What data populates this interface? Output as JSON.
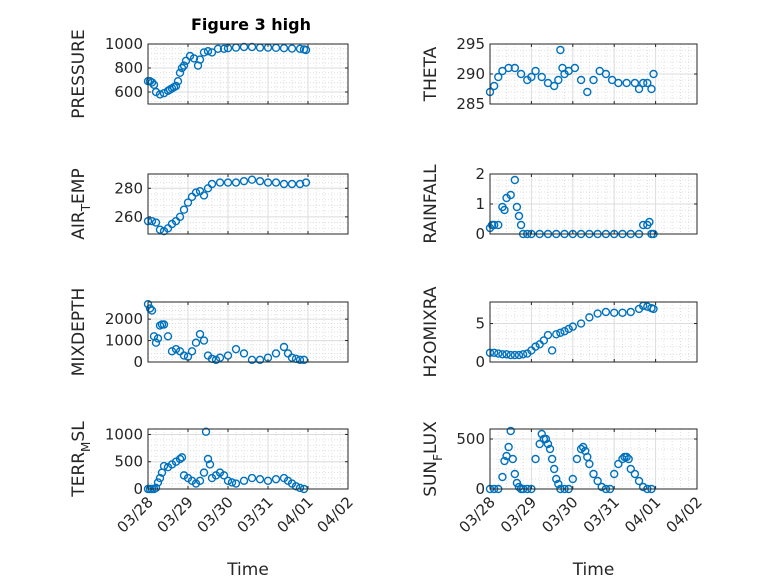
{
  "figure": {
    "title": "Figure 3 high",
    "marker_color": "#0072BD",
    "xlabel": "Time"
  },
  "chart_data": [
    {
      "type": "scatter",
      "title": "Figure 3 high",
      "xlabel": "",
      "ylabel": "PRESSURE",
      "xlim": [
        0,
        5
      ],
      "ylim": [
        500,
        1000
      ],
      "yticks": [
        600,
        800,
        1000
      ],
      "xticks": [
        0,
        1,
        2,
        3,
        4,
        5
      ],
      "xticklabels": [
        "03/28",
        "03/29",
        "03/30",
        "03/31",
        "04/01",
        "04/02"
      ],
      "x": [
        0.0,
        0.05,
        0.1,
        0.15,
        0.2,
        0.3,
        0.4,
        0.5,
        0.55,
        0.6,
        0.65,
        0.7,
        0.75,
        0.8,
        0.85,
        0.9,
        0.95,
        1.05,
        1.15,
        1.25,
        1.3,
        1.4,
        1.5,
        1.6,
        1.75,
        1.9,
        2.0,
        2.2,
        2.4,
        2.6,
        2.8,
        3.0,
        3.2,
        3.4,
        3.6,
        3.8,
        3.9,
        3.95
      ],
      "y": [
        690,
        690,
        680,
        660,
        600,
        580,
        590,
        610,
        620,
        630,
        640,
        650,
        690,
        760,
        800,
        820,
        860,
        900,
        880,
        820,
        870,
        930,
        940,
        930,
        960,
        960,
        965,
        970,
        975,
        975,
        970,
        970,
        968,
        965,
        962,
        960,
        955,
        950
      ]
    },
    {
      "type": "scatter",
      "xlabel": "",
      "ylabel": "THETA",
      "xlim": [
        0,
        5
      ],
      "ylim": [
        285,
        295
      ],
      "yticks": [
        285,
        290,
        295
      ],
      "xticks": [
        0,
        1,
        2,
        3,
        4,
        5
      ],
      "xticklabels": [
        "03/28",
        "03/29",
        "03/30",
        "03/31",
        "04/01",
        "04/02"
      ],
      "x": [
        0.0,
        0.1,
        0.2,
        0.3,
        0.45,
        0.6,
        0.75,
        0.9,
        1.0,
        1.1,
        1.25,
        1.4,
        1.55,
        1.65,
        1.7,
        1.75,
        1.8,
        1.9,
        2.05,
        2.2,
        2.35,
        2.5,
        2.65,
        2.8,
        2.95,
        3.1,
        3.3,
        3.5,
        3.6,
        3.7,
        3.8,
        3.9,
        3.95
      ],
      "y": [
        287,
        288,
        289.5,
        290.5,
        291,
        291,
        290,
        289,
        289.5,
        290.5,
        289.5,
        288.5,
        288,
        289,
        294,
        291,
        290,
        290.5,
        291,
        289,
        287,
        289,
        290.5,
        290,
        289,
        288.5,
        288.5,
        288.5,
        287.5,
        288.5,
        288.5,
        287.5,
        290
      ]
    },
    {
      "type": "scatter",
      "xlabel": "",
      "ylabel": "AIRTEMP",
      "ylabel_main": "AIR",
      "ylabel_sub": "T",
      "ylabel_rest": "EMP",
      "xlim": [
        0,
        5
      ],
      "ylim": [
        248,
        290
      ],
      "yticks": [
        260,
        280
      ],
      "xticks": [
        0,
        1,
        2,
        3,
        4,
        5
      ],
      "xticklabels": [
        "03/28",
        "03/29",
        "03/30",
        "03/31",
        "04/01",
        "04/02"
      ],
      "x": [
        0.0,
        0.1,
        0.2,
        0.3,
        0.4,
        0.5,
        0.6,
        0.7,
        0.8,
        0.9,
        1.0,
        1.1,
        1.2,
        1.3,
        1.4,
        1.5,
        1.6,
        1.8,
        2.0,
        2.2,
        2.4,
        2.6,
        2.8,
        3.0,
        3.2,
        3.4,
        3.6,
        3.8,
        3.95
      ],
      "y": [
        257,
        257,
        256,
        251,
        250,
        252,
        255,
        257,
        260,
        265,
        270,
        274,
        277,
        278,
        275,
        280,
        283,
        284,
        284,
        284,
        285,
        286,
        285,
        284,
        284,
        283,
        283,
        283,
        284
      ]
    },
    {
      "type": "scatter",
      "xlabel": "",
      "ylabel": "RAINFALL",
      "xlim": [
        0,
        5
      ],
      "ylim": [
        0,
        2
      ],
      "yticks": [
        0,
        1,
        2
      ],
      "xticks": [
        0,
        1,
        2,
        3,
        4,
        5
      ],
      "xticklabels": [
        "03/28",
        "03/29",
        "03/30",
        "03/31",
        "04/01",
        "04/02"
      ],
      "x": [
        0.0,
        0.05,
        0.1,
        0.2,
        0.3,
        0.35,
        0.4,
        0.5,
        0.6,
        0.65,
        0.7,
        0.75,
        0.8,
        0.9,
        1.0,
        1.2,
        1.4,
        1.6,
        1.8,
        2.0,
        2.2,
        2.4,
        2.6,
        2.8,
        3.0,
        3.2,
        3.4,
        3.6,
        3.7,
        3.8,
        3.85,
        3.9,
        3.95
      ],
      "y": [
        0.2,
        0.3,
        0.3,
        0.3,
        0.9,
        0.8,
        1.2,
        1.3,
        1.8,
        0.9,
        0.6,
        0.3,
        0.0,
        0.0,
        0.0,
        0.0,
        0.0,
        0.0,
        0.0,
        0.0,
        0.0,
        0.0,
        0.0,
        0.0,
        0.0,
        0.0,
        0.0,
        0.0,
        0.3,
        0.3,
        0.4,
        0.0,
        0.0
      ]
    },
    {
      "type": "scatter",
      "xlabel": "",
      "ylabel": "MIXDEPTH",
      "xlim": [
        0,
        5
      ],
      "ylim": [
        0,
        2800
      ],
      "yticks": [
        0,
        1000,
        2000
      ],
      "xticks": [
        0,
        1,
        2,
        3,
        4,
        5
      ],
      "xticklabels": [
        "03/28",
        "03/29",
        "03/30",
        "03/31",
        "04/01",
        "04/02"
      ],
      "x": [
        0.0,
        0.05,
        0.1,
        0.15,
        0.2,
        0.25,
        0.3,
        0.35,
        0.4,
        0.5,
        0.6,
        0.7,
        0.8,
        0.9,
        1.0,
        1.1,
        1.2,
        1.3,
        1.4,
        1.5,
        1.6,
        1.7,
        1.8,
        2.0,
        2.2,
        2.4,
        2.6,
        2.8,
        3.0,
        3.2,
        3.4,
        3.5,
        3.6,
        3.7,
        3.8,
        3.9
      ],
      "y": [
        2700,
        2500,
        2400,
        1200,
        900,
        1100,
        1700,
        1750,
        1750,
        1200,
        500,
        600,
        500,
        300,
        250,
        500,
        900,
        1300,
        1000,
        300,
        150,
        100,
        200,
        300,
        600,
        400,
        100,
        100,
        200,
        400,
        700,
        400,
        200,
        150,
        100,
        100
      ]
    },
    {
      "type": "scatter",
      "xlabel": "",
      "ylabel": "H2OMIXRA",
      "xlim": [
        0,
        5
      ],
      "ylim": [
        0,
        7.8
      ],
      "yticks": [
        0,
        5
      ],
      "xticks": [
        0,
        1,
        2,
        3,
        4,
        5
      ],
      "xticklabels": [
        "03/28",
        "03/29",
        "03/30",
        "03/31",
        "04/01",
        "04/02"
      ],
      "x": [
        0.0,
        0.1,
        0.2,
        0.3,
        0.4,
        0.5,
        0.6,
        0.7,
        0.8,
        0.9,
        1.0,
        1.1,
        1.2,
        1.3,
        1.4,
        1.5,
        1.6,
        1.7,
        1.8,
        1.9,
        2.0,
        2.2,
        2.4,
        2.6,
        2.8,
        3.0,
        3.2,
        3.4,
        3.6,
        3.7,
        3.8,
        3.9,
        3.95
      ],
      "y": [
        1.2,
        1.2,
        1.1,
        1.0,
        1.0,
        0.9,
        0.9,
        0.9,
        1.0,
        1.1,
        1.5,
        2.0,
        2.3,
        2.8,
        3.5,
        1.5,
        3.6,
        3.8,
        4.0,
        4.3,
        4.6,
        5.0,
        5.8,
        6.3,
        6.5,
        6.4,
        6.4,
        6.5,
        6.9,
        7.3,
        7.2,
        7.0,
        6.9
      ]
    },
    {
      "type": "scatter",
      "xlabel": "Time",
      "ylabel": "TERRMSL",
      "ylabel_main": "TERR",
      "ylabel_sub": "M",
      "ylabel_rest": "SL",
      "xlim": [
        0,
        5
      ],
      "ylim": [
        0,
        1100
      ],
      "yticks": [
        0,
        500,
        1000
      ],
      "xticks": [
        0,
        1,
        2,
        3,
        4,
        5
      ],
      "xticklabels": [
        "03/28",
        "03/29",
        "03/30",
        "03/31",
        "04/01",
        "04/02"
      ],
      "x": [
        0.0,
        0.05,
        0.1,
        0.15,
        0.2,
        0.25,
        0.3,
        0.35,
        0.4,
        0.5,
        0.6,
        0.7,
        0.8,
        0.85,
        0.9,
        1.0,
        1.1,
        1.2,
        1.3,
        1.4,
        1.45,
        1.5,
        1.55,
        1.6,
        1.7,
        1.8,
        1.9,
        2.0,
        2.1,
        2.2,
        2.4,
        2.6,
        2.8,
        3.0,
        3.2,
        3.4,
        3.5,
        3.6,
        3.7,
        3.8,
        3.9
      ],
      "y": [
        0,
        0,
        0,
        0,
        20,
        120,
        200,
        300,
        420,
        400,
        450,
        500,
        550,
        580,
        250,
        200,
        150,
        100,
        150,
        300,
        1050,
        550,
        450,
        200,
        250,
        300,
        250,
        150,
        120,
        100,
        150,
        200,
        180,
        150,
        180,
        200,
        150,
        100,
        50,
        20,
        0
      ]
    },
    {
      "type": "scatter",
      "xlabel": "Time",
      "ylabel": "SUNFLUX",
      "ylabel_main": "SUN",
      "ylabel_sub": "F",
      "ylabel_rest": "LUX",
      "xlim": [
        0,
        5
      ],
      "ylim": [
        0,
        600
      ],
      "yticks": [
        0,
        500
      ],
      "xticks": [
        0,
        1,
        2,
        3,
        4,
        5
      ],
      "xticklabels": [
        "03/28",
        "03/29",
        "03/30",
        "03/31",
        "04/01",
        "04/02"
      ],
      "x": [
        0.0,
        0.1,
        0.2,
        0.3,
        0.35,
        0.4,
        0.45,
        0.5,
        0.55,
        0.6,
        0.65,
        0.7,
        0.75,
        0.8,
        0.9,
        1.0,
        1.1,
        1.2,
        1.25,
        1.3,
        1.35,
        1.4,
        1.45,
        1.5,
        1.55,
        1.6,
        1.65,
        1.7,
        1.8,
        1.9,
        2.0,
        2.1,
        2.2,
        2.25,
        2.3,
        2.35,
        2.4,
        2.5,
        2.6,
        2.7,
        2.8,
        2.9,
        3.0,
        3.1,
        3.2,
        3.25,
        3.3,
        3.35,
        3.4,
        3.5,
        3.6,
        3.7,
        3.8,
        3.9
      ],
      "y": [
        0,
        0,
        0,
        120,
        280,
        330,
        420,
        580,
        300,
        150,
        60,
        20,
        0,
        0,
        0,
        0,
        300,
        450,
        550,
        500,
        500,
        450,
        400,
        300,
        200,
        100,
        50,
        0,
        0,
        0,
        100,
        300,
        400,
        420,
        380,
        320,
        250,
        150,
        80,
        20,
        0,
        0,
        150,
        250,
        300,
        320,
        320,
        300,
        200,
        150,
        80,
        20,
        0,
        0
      ]
    }
  ]
}
